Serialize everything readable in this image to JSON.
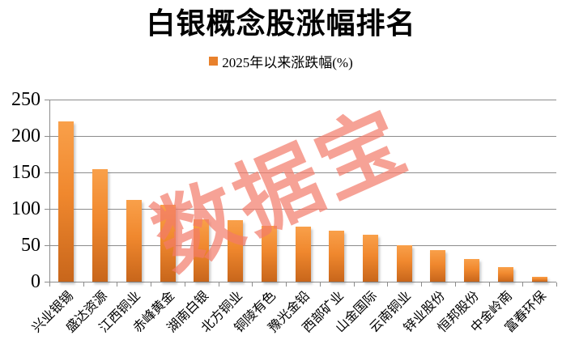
{
  "chart_data": {
    "type": "bar",
    "title": "白银概念股涨幅排名",
    "legend": "2025年以来涨跌幅(%)",
    "legend_position": "top",
    "xlabel": "",
    "ylabel": "",
    "grid": true,
    "ylim": [
      0,
      250
    ],
    "yticks": [
      0,
      50,
      100,
      150,
      200,
      250
    ],
    "categories": [
      "兴业银锡",
      "盛达资源",
      "江西铜业",
      "赤峰黄金",
      "湖南白银",
      "北方铜业",
      "铜陵有色",
      "豫光金铅",
      "西部矿业",
      "山金国际",
      "云南铜业",
      "锌业股份",
      "恒邦股份",
      "中金岭南",
      "富春环保"
    ],
    "values": [
      220,
      154,
      112,
      106,
      86,
      84,
      77,
      76,
      70,
      65,
      50,
      43,
      31,
      20,
      7
    ]
  },
  "watermark": {
    "text": "数据宝"
  },
  "colors": {
    "bar_top": "#F9A04A",
    "bar_mid": "#F0882E",
    "bar_bottom": "#C8661B",
    "legend_swatch": "#E8812C",
    "gridline": "#8C8C8C",
    "watermark": "rgba(242,122,106,0.70)",
    "text": "#000000"
  }
}
